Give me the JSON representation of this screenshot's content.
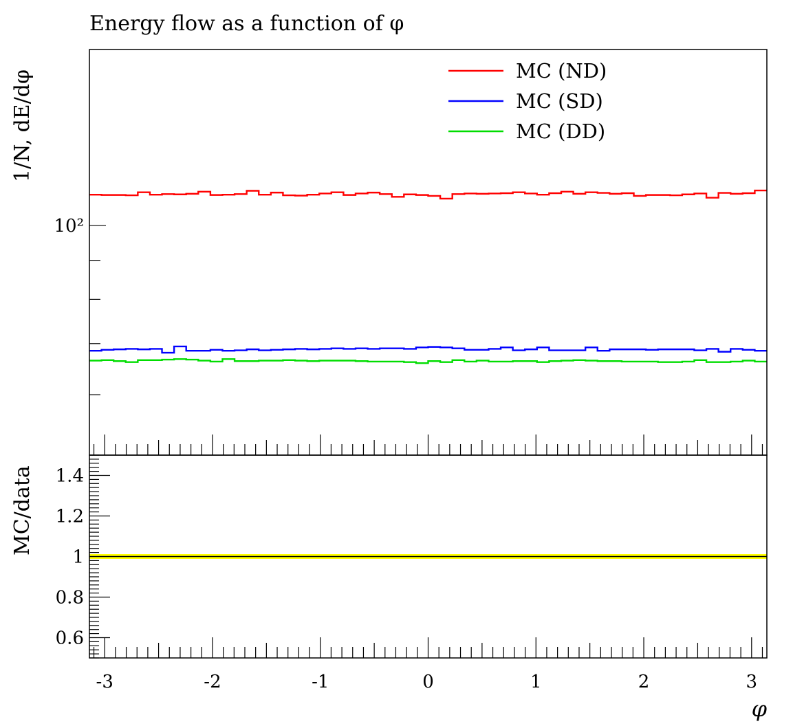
{
  "chart_data": [
    {
      "type": "line",
      "title": "Energy flow as a function of φ",
      "xlabel": "",
      "ylabel": "1/N, dE/dφ",
      "xlim": [
        -3.14159,
        3.14159
      ],
      "ylim": [
        50,
        170
      ],
      "yscale": "log",
      "grid": false,
      "legend_position": "top-right",
      "yticks": [
        {
          "value": 100,
          "label": "10²"
        }
      ],
      "series": [
        {
          "name": "MC (ND)",
          "color": "#ff0000",
          "values": [
            109.7,
            109.6,
            109.6,
            109.5,
            110.5,
            109.7,
            109.9,
            109.8,
            110.0,
            110.7,
            109.6,
            109.7,
            109.9,
            111.0,
            109.7,
            110.4,
            109.5,
            109.4,
            109.7,
            110.1,
            110.5,
            109.6,
            110.1,
            110.4,
            109.9,
            109.0,
            109.8,
            109.6,
            109.3,
            108.4,
            109.9,
            110.1,
            110.0,
            110.1,
            110.2,
            110.5,
            110.1,
            109.7,
            110.2,
            110.7,
            110.0,
            110.5,
            110.3,
            110.0,
            110.2,
            109.3,
            109.6,
            109.6,
            109.5,
            109.8,
            110.1,
            108.7,
            110.3,
            110.0,
            110.2,
            111.1
          ]
        },
        {
          "name": "MC (SD)",
          "color": "#0000ff",
          "values": [
            68.5,
            68.7,
            68.8,
            68.9,
            68.8,
            68.9,
            68.1,
            69.4,
            68.5,
            68.5,
            68.7,
            68.5,
            68.6,
            68.8,
            68.6,
            68.7,
            68.8,
            68.9,
            68.8,
            68.9,
            69.0,
            68.9,
            69.0,
            68.9,
            69.0,
            69.0,
            68.9,
            69.2,
            69.3,
            69.2,
            69.0,
            68.7,
            68.7,
            68.9,
            69.2,
            68.6,
            68.8,
            69.2,
            68.6,
            68.6,
            68.6,
            69.2,
            68.5,
            68.8,
            68.8,
            68.8,
            68.7,
            68.8,
            68.8,
            68.8,
            68.6,
            68.9,
            68.3,
            68.9,
            68.7,
            68.5
          ]
        },
        {
          "name": "MC (DD)",
          "color": "#00dd00",
          "values": [
            66.5,
            66.6,
            66.4,
            66.2,
            66.6,
            66.6,
            66.7,
            66.8,
            66.7,
            66.5,
            66.3,
            66.8,
            66.4,
            66.4,
            66.5,
            66.5,
            66.6,
            66.5,
            66.4,
            66.5,
            66.5,
            66.5,
            66.4,
            66.3,
            66.3,
            66.3,
            66.2,
            66.0,
            66.4,
            66.2,
            66.6,
            66.3,
            66.5,
            66.3,
            66.3,
            66.4,
            66.4,
            66.2,
            66.4,
            66.5,
            66.6,
            66.5,
            66.4,
            66.4,
            66.3,
            66.3,
            66.3,
            66.2,
            66.2,
            66.3,
            66.6,
            66.2,
            66.2,
            66.3,
            66.5,
            66.3
          ]
        }
      ]
    },
    {
      "type": "line",
      "title": "",
      "xlabel": "φ",
      "ylabel": "MC/data",
      "xlim": [
        -3.14159,
        3.14159
      ],
      "ylim": [
        0.5,
        1.5
      ],
      "xticks": [
        -3,
        -2,
        -1,
        0,
        1,
        2,
        3
      ],
      "yticks": [
        {
          "value": 0.6,
          "label": "0.6"
        },
        {
          "value": 0.8,
          "label": "0.8"
        },
        {
          "value": 1.0,
          "label": "1"
        },
        {
          "value": 1.2,
          "label": "1.2"
        },
        {
          "value": 1.4,
          "label": "1.4"
        }
      ],
      "series": [
        {
          "color": "#000000",
          "band_color": "#ffff00",
          "x": [
            -3.14159,
            3.14159
          ],
          "values": [
            1.0,
            1.0
          ]
        }
      ]
    }
  ]
}
